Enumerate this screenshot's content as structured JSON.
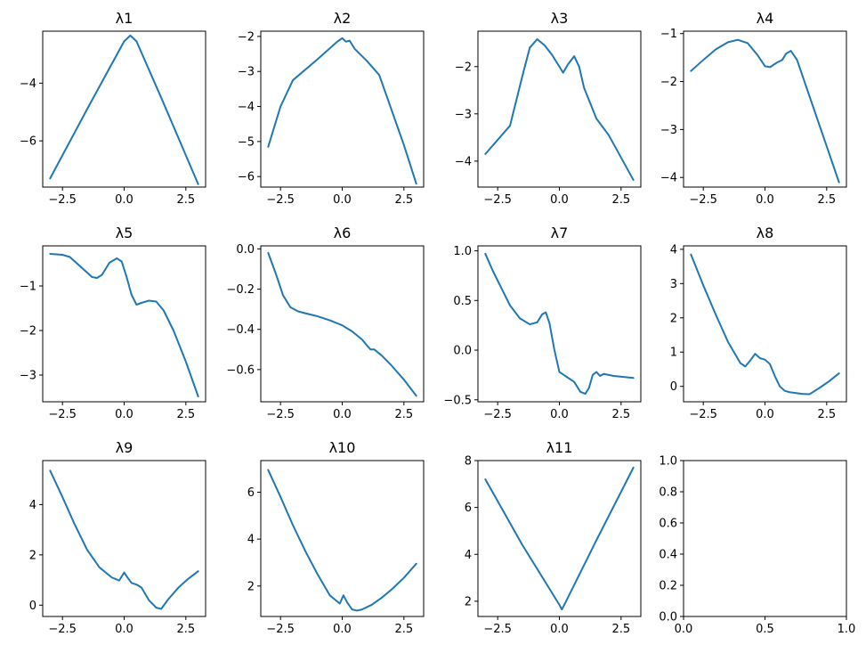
{
  "chart_data": [
    {
      "type": "line",
      "title": "λ1",
      "xlim": [
        -3.3,
        3.3
      ],
      "ylim": [
        -7.6,
        -2.2
      ],
      "xticks": [
        -2.5,
        0.0,
        2.5
      ],
      "xtick_labels": [
        "−2.5",
        "0.0",
        "2.5"
      ],
      "yticks": [
        -6,
        -4
      ],
      "ytick_labels": [
        "−6",
        "−4"
      ],
      "color": "#1f77b4",
      "series": [
        {
          "x": [
            -3.0,
            -1.5,
            0.0,
            0.25,
            0.5,
            1.5,
            3.0
          ],
          "y": [
            -7.3,
            -4.9,
            -2.55,
            -2.35,
            -2.55,
            -4.5,
            -7.5
          ]
        }
      ]
    },
    {
      "type": "line",
      "title": "λ2",
      "xlim": [
        -3.3,
        3.3
      ],
      "ylim": [
        -6.3,
        -1.85
      ],
      "xticks": [
        -2.5,
        0.0,
        2.5
      ],
      "xtick_labels": [
        "−2.5",
        "0.0",
        "2.5"
      ],
      "yticks": [
        -6,
        -5,
        -4,
        -3,
        -2
      ],
      "ytick_labels": [
        "−6",
        "−5",
        "−4",
        "−3",
        "−2"
      ],
      "color": "#1f77b4",
      "series": [
        {
          "x": [
            -3.0,
            -2.5,
            -2.0,
            -1.0,
            -0.2,
            0.0,
            0.15,
            0.3,
            0.5,
            1.0,
            1.5,
            2.0,
            2.5,
            3.0
          ],
          "y": [
            -5.15,
            -4.0,
            -3.25,
            -2.65,
            -2.15,
            -2.05,
            -2.15,
            -2.12,
            -2.35,
            -2.7,
            -3.1,
            -4.1,
            -5.1,
            -6.2
          ]
        }
      ]
    },
    {
      "type": "line",
      "title": "λ3",
      "xlim": [
        -3.3,
        3.3
      ],
      "ylim": [
        -4.55,
        -1.25
      ],
      "xticks": [
        -2.5,
        0.0,
        2.5
      ],
      "xtick_labels": [
        "−2.5",
        "0.0",
        "2.5"
      ],
      "yticks": [
        -4,
        -3,
        -2
      ],
      "ytick_labels": [
        "−4",
        "−3",
        "−2"
      ],
      "color": "#1f77b4",
      "series": [
        {
          "x": [
            -3.0,
            -2.0,
            -1.5,
            -1.2,
            -0.9,
            -0.6,
            -0.3,
            0.0,
            0.15,
            0.35,
            0.6,
            0.8,
            1.0,
            1.5,
            2.0,
            3.0
          ],
          "y": [
            -3.85,
            -3.25,
            -2.2,
            -1.6,
            -1.42,
            -1.55,
            -1.75,
            -2.0,
            -2.13,
            -1.95,
            -1.78,
            -2.0,
            -2.45,
            -3.1,
            -3.45,
            -4.4
          ]
        }
      ]
    },
    {
      "type": "line",
      "title": "λ4",
      "xlim": [
        -3.3,
        3.3
      ],
      "ylim": [
        -4.2,
        -0.95
      ],
      "xticks": [
        -2.5,
        0.0,
        2.5
      ],
      "xtick_labels": [
        "−2.5",
        "0.0",
        "2.5"
      ],
      "yticks": [
        -4,
        -3,
        -2,
        -1
      ],
      "ytick_labels": [
        "−4",
        "−3",
        "−2",
        "−1"
      ],
      "color": "#1f77b4",
      "series": [
        {
          "x": [
            -3.0,
            -2.5,
            -2.0,
            -1.5,
            -1.1,
            -0.7,
            -0.3,
            0.0,
            0.2,
            0.5,
            0.7,
            0.85,
            1.05,
            1.3,
            1.6,
            2.0,
            2.5,
            3.0
          ],
          "y": [
            -1.78,
            -1.55,
            -1.33,
            -1.18,
            -1.13,
            -1.2,
            -1.45,
            -1.68,
            -1.7,
            -1.6,
            -1.55,
            -1.42,
            -1.36,
            -1.55,
            -2.0,
            -2.6,
            -3.35,
            -4.1
          ]
        }
      ]
    },
    {
      "type": "line",
      "title": "λ5",
      "xlim": [
        -3.3,
        3.3
      ],
      "ylim": [
        -3.6,
        -0.1
      ],
      "xticks": [
        -2.5,
        0.0,
        2.5
      ],
      "xtick_labels": [
        "−2.5",
        "0.0",
        "2.5"
      ],
      "yticks": [
        -3,
        -2,
        -1
      ],
      "ytick_labels": [
        "−3",
        "−2",
        "−1"
      ],
      "color": "#1f77b4",
      "series": [
        {
          "x": [
            -3.0,
            -2.5,
            -2.2,
            -2.0,
            -1.6,
            -1.3,
            -1.1,
            -0.9,
            -0.6,
            -0.3,
            -0.1,
            0.1,
            0.3,
            0.5,
            0.7,
            1.0,
            1.3,
            1.6,
            2.0,
            2.5,
            3.0
          ],
          "y": [
            -0.28,
            -0.3,
            -0.35,
            -0.45,
            -0.65,
            -0.8,
            -0.82,
            -0.75,
            -0.48,
            -0.38,
            -0.45,
            -0.8,
            -1.2,
            -1.42,
            -1.38,
            -1.33,
            -1.35,
            -1.55,
            -2.0,
            -2.7,
            -3.48
          ]
        }
      ]
    },
    {
      "type": "line",
      "title": "λ6",
      "xlim": [
        -3.3,
        3.3
      ],
      "ylim": [
        -0.76,
        0.015
      ],
      "xticks": [
        -2.5,
        0.0,
        2.5
      ],
      "xtick_labels": [
        "−2.5",
        "0.0",
        "2.5"
      ],
      "yticks": [
        -0.6,
        -0.4,
        -0.2,
        0.0
      ],
      "ytick_labels": [
        "−0.6",
        "−0.4",
        "−0.2",
        "0.0"
      ],
      "color": "#1f77b4",
      "series": [
        {
          "x": [
            -3.0,
            -2.7,
            -2.4,
            -2.1,
            -1.8,
            -1.5,
            -1.0,
            -0.5,
            0.0,
            0.4,
            0.8,
            1.0,
            1.15,
            1.3,
            1.6,
            2.0,
            2.5,
            3.0
          ],
          "y": [
            -0.02,
            -0.12,
            -0.23,
            -0.29,
            -0.31,
            -0.32,
            -0.335,
            -0.355,
            -0.38,
            -0.41,
            -0.45,
            -0.48,
            -0.5,
            -0.5,
            -0.53,
            -0.58,
            -0.65,
            -0.73
          ]
        }
      ]
    },
    {
      "type": "line",
      "title": "λ7",
      "xlim": [
        -3.3,
        3.3
      ],
      "ylim": [
        -0.52,
        1.05
      ],
      "xticks": [
        -2.5,
        0.0,
        2.5
      ],
      "xtick_labels": [
        "−2.5",
        "0.0",
        "2.5"
      ],
      "yticks": [
        -0.5,
        0.0,
        0.5,
        1.0
      ],
      "ytick_labels": [
        "−0.5",
        "0.0",
        "0.5",
        "1.0"
      ],
      "color": "#1f77b4",
      "series": [
        {
          "x": [
            -3.0,
            -2.7,
            -2.3,
            -2.0,
            -1.6,
            -1.2,
            -0.9,
            -0.7,
            -0.55,
            -0.4,
            -0.2,
            0.0,
            0.3,
            0.6,
            0.85,
            1.05,
            1.2,
            1.35,
            1.5,
            1.65,
            1.8,
            2.2,
            2.6,
            3.0
          ],
          "y": [
            0.97,
            0.8,
            0.6,
            0.45,
            0.32,
            0.26,
            0.28,
            0.36,
            0.38,
            0.27,
            0.0,
            -0.22,
            -0.27,
            -0.32,
            -0.42,
            -0.44,
            -0.38,
            -0.25,
            -0.22,
            -0.26,
            -0.24,
            -0.26,
            -0.27,
            -0.28
          ]
        }
      ]
    },
    {
      "type": "line",
      "title": "λ8",
      "xlim": [
        -3.3,
        3.3
      ],
      "ylim": [
        -0.45,
        4.1
      ],
      "xticks": [
        -2.5,
        0.0,
        2.5
      ],
      "xtick_labels": [
        "−2.5",
        "0.0",
        "2.5"
      ],
      "yticks": [
        0,
        1,
        2,
        3,
        4
      ],
      "ytick_labels": [
        "0",
        "1",
        "2",
        "3",
        "4"
      ],
      "color": "#1f77b4",
      "series": [
        {
          "x": [
            -3.0,
            -2.5,
            -2.0,
            -1.5,
            -1.0,
            -0.8,
            -0.6,
            -0.4,
            -0.2,
            0.0,
            0.2,
            0.4,
            0.6,
            0.8,
            1.0,
            1.3,
            1.5,
            1.8,
            2.2,
            2.6,
            3.0
          ],
          "y": [
            3.85,
            2.95,
            2.1,
            1.3,
            0.68,
            0.58,
            0.75,
            0.95,
            0.82,
            0.78,
            0.65,
            0.3,
            0.0,
            -0.13,
            -0.17,
            -0.2,
            -0.22,
            -0.23,
            -0.05,
            0.15,
            0.38
          ]
        }
      ]
    },
    {
      "type": "line",
      "title": "λ9",
      "xlim": [
        -3.3,
        3.3
      ],
      "ylim": [
        -0.45,
        5.75
      ],
      "xticks": [
        -2.5,
        0.0,
        2.5
      ],
      "xtick_labels": [
        "−2.5",
        "0.0",
        "2.5"
      ],
      "yticks": [
        0,
        2,
        4
      ],
      "ytick_labels": [
        "0",
        "2",
        "4"
      ],
      "color": "#1f77b4",
      "series": [
        {
          "x": [
            -3.0,
            -2.5,
            -2.0,
            -1.5,
            -1.0,
            -0.5,
            -0.2,
            0.0,
            0.1,
            0.3,
            0.5,
            0.7,
            1.0,
            1.3,
            1.5,
            1.8,
            2.2,
            2.6,
            3.0
          ],
          "y": [
            5.35,
            4.3,
            3.2,
            2.2,
            1.5,
            1.1,
            0.98,
            1.3,
            1.15,
            0.88,
            0.82,
            0.7,
            0.2,
            -0.1,
            -0.15,
            0.25,
            0.7,
            1.05,
            1.35
          ]
        }
      ]
    },
    {
      "type": "line",
      "title": "λ10",
      "xlim": [
        -3.3,
        3.3
      ],
      "ylim": [
        0.7,
        7.35
      ],
      "xticks": [
        -2.5,
        0.0,
        2.5
      ],
      "xtick_labels": [
        "−2.5",
        "0.0",
        "2.5"
      ],
      "yticks": [
        2,
        4,
        6
      ],
      "ytick_labels": [
        "2",
        "4",
        "6"
      ],
      "color": "#1f77b4",
      "series": [
        {
          "x": [
            -3.0,
            -2.5,
            -2.0,
            -1.5,
            -1.0,
            -0.5,
            -0.1,
            0.05,
            0.2,
            0.4,
            0.6,
            0.8,
            1.2,
            1.6,
            2.0,
            2.5,
            3.0
          ],
          "y": [
            6.95,
            5.8,
            4.6,
            3.5,
            2.5,
            1.6,
            1.25,
            1.6,
            1.3,
            1.0,
            0.95,
            1.0,
            1.2,
            1.5,
            1.85,
            2.35,
            2.95
          ]
        }
      ]
    },
    {
      "type": "line",
      "title": "λ11",
      "xlim": [
        -3.3,
        3.3
      ],
      "ylim": [
        1.35,
        8.0
      ],
      "xticks": [
        -2.5,
        0.0,
        2.5
      ],
      "xtick_labels": [
        "−2.5",
        "0.0",
        "2.5"
      ],
      "yticks": [
        2,
        4,
        6,
        8
      ],
      "ytick_labels": [
        "2",
        "4",
        "6",
        "8"
      ],
      "color": "#1f77b4",
      "series": [
        {
          "x": [
            -3.0,
            -1.5,
            0.0,
            0.1,
            0.2,
            1.5,
            3.0
          ],
          "y": [
            7.2,
            4.4,
            1.85,
            1.65,
            1.85,
            4.6,
            7.7
          ]
        }
      ]
    },
    {
      "type": "line",
      "title": "",
      "xlim": [
        0.0,
        1.0
      ],
      "ylim": [
        0.0,
        1.0
      ],
      "xticks": [
        0.0,
        0.5,
        1.0
      ],
      "xtick_labels": [
        "0.0",
        "0.5",
        "1.0"
      ],
      "yticks": [
        0.0,
        0.2,
        0.4,
        0.6,
        0.8,
        1.0
      ],
      "ytick_labels": [
        "0.0",
        "0.2",
        "0.4",
        "0.6",
        "0.8",
        "1.0"
      ],
      "color": "#1f77b4",
      "series": []
    }
  ]
}
